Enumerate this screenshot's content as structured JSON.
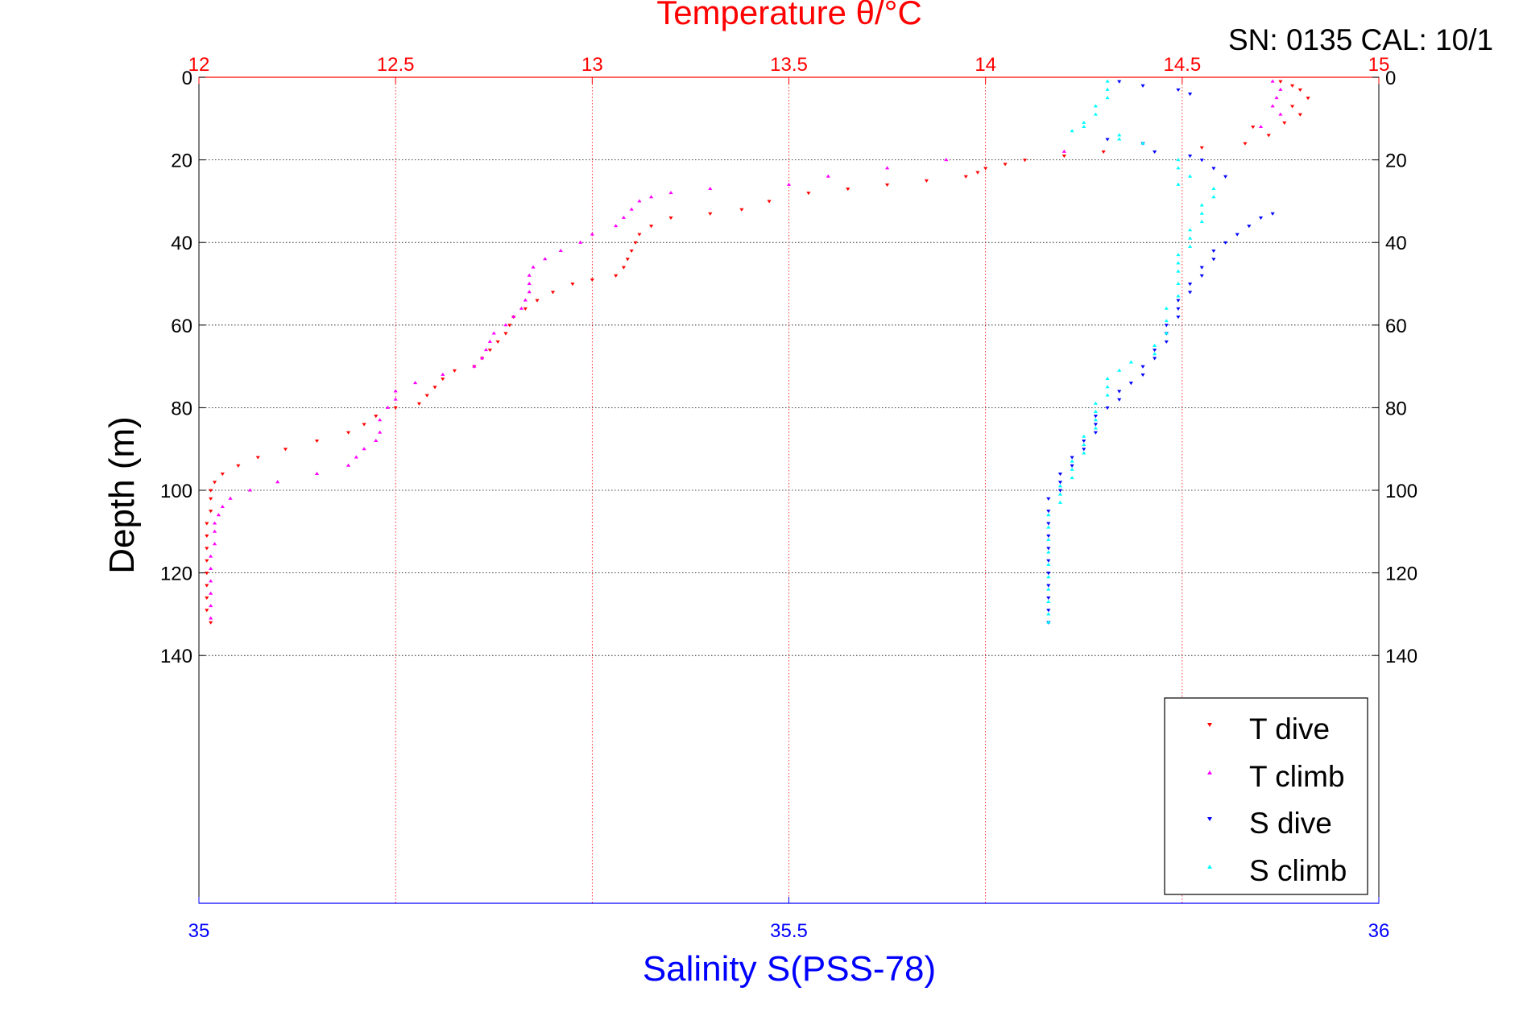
{
  "chart_data": {
    "type": "scatter",
    "title": "Temperature θ/°C",
    "subtitle": "SN: 0135  CAL: 10/1",
    "xlabel_top": "Temperature θ/°C",
    "xlabel_bottom": "Salinity S(PSS-78)",
    "ylabel": "Depth (m)",
    "temperature_axis": {
      "lim": [
        12,
        15
      ],
      "ticks": [
        "12",
        "12.5",
        "13",
        "13.5",
        "14",
        "14.5",
        "15"
      ],
      "color": "#ff0000"
    },
    "salinity_axis": {
      "lim": [
        35,
        36
      ],
      "ticks": [
        "35",
        "35.5",
        "36"
      ],
      "color": "#0000ff"
    },
    "depth_axis": {
      "lim": [
        0,
        200
      ],
      "reversed": true,
      "ticks": [
        "0",
        "20",
        "40",
        "60",
        "80",
        "100",
        "120",
        "140"
      ]
    },
    "grid": true,
    "legend_position": "bottom-right",
    "series": [
      {
        "name": "T dive",
        "axis": "temperature",
        "marker": "down-triangle",
        "color": "#ff0000",
        "points": [
          [
            14.75,
            1
          ],
          [
            14.78,
            2
          ],
          [
            14.8,
            3
          ],
          [
            14.82,
            5
          ],
          [
            14.78,
            7
          ],
          [
            14.8,
            9
          ],
          [
            14.76,
            11
          ],
          [
            14.68,
            12
          ],
          [
            14.72,
            14
          ],
          [
            14.66,
            16
          ],
          [
            14.55,
            17
          ],
          [
            14.3,
            18
          ],
          [
            14.2,
            19
          ],
          [
            14.1,
            20
          ],
          [
            14.05,
            21
          ],
          [
            14.0,
            22
          ],
          [
            13.98,
            23
          ],
          [
            13.95,
            24
          ],
          [
            13.85,
            25
          ],
          [
            13.75,
            26
          ],
          [
            13.65,
            27
          ],
          [
            13.55,
            28
          ],
          [
            13.45,
            30
          ],
          [
            13.38,
            32
          ],
          [
            13.3,
            33
          ],
          [
            13.2,
            34
          ],
          [
            13.15,
            36
          ],
          [
            13.12,
            38
          ],
          [
            13.11,
            40
          ],
          [
            13.1,
            42
          ],
          [
            13.09,
            44
          ],
          [
            13.08,
            46
          ],
          [
            13.06,
            48
          ],
          [
            13.0,
            49
          ],
          [
            12.95,
            50
          ],
          [
            12.9,
            52
          ],
          [
            12.86,
            54
          ],
          [
            12.83,
            56
          ],
          [
            12.8,
            58
          ],
          [
            12.79,
            60
          ],
          [
            12.78,
            62
          ],
          [
            12.76,
            64
          ],
          [
            12.74,
            66
          ],
          [
            12.72,
            68
          ],
          [
            12.7,
            70
          ],
          [
            12.65,
            71
          ],
          [
            12.62,
            73
          ],
          [
            12.6,
            75
          ],
          [
            12.58,
            77
          ],
          [
            12.56,
            79
          ],
          [
            12.5,
            80
          ],
          [
            12.45,
            82
          ],
          [
            12.42,
            84
          ],
          [
            12.38,
            86
          ],
          [
            12.3,
            88
          ],
          [
            12.22,
            90
          ],
          [
            12.15,
            92
          ],
          [
            12.1,
            94
          ],
          [
            12.06,
            96
          ],
          [
            12.04,
            98
          ],
          [
            12.03,
            100
          ],
          [
            12.03,
            102
          ],
          [
            12.03,
            105
          ],
          [
            12.02,
            108
          ],
          [
            12.02,
            111
          ],
          [
            12.02,
            114
          ],
          [
            12.02,
            117
          ],
          [
            12.02,
            120
          ],
          [
            12.02,
            123
          ],
          [
            12.02,
            126
          ],
          [
            12.02,
            129
          ],
          [
            12.03,
            132
          ]
        ]
      },
      {
        "name": "T climb",
        "axis": "temperature",
        "marker": "up-triangle",
        "color": "#ff00ff",
        "points": [
          [
            14.73,
            1
          ],
          [
            14.75,
            3
          ],
          [
            14.74,
            5
          ],
          [
            14.73,
            7
          ],
          [
            14.75,
            9
          ],
          [
            14.7,
            12
          ],
          [
            14.2,
            18
          ],
          [
            13.9,
            20
          ],
          [
            13.75,
            22
          ],
          [
            13.6,
            24
          ],
          [
            13.5,
            26
          ],
          [
            13.3,
            27
          ],
          [
            13.2,
            28
          ],
          [
            13.15,
            29
          ],
          [
            13.12,
            30
          ],
          [
            13.1,
            32
          ],
          [
            13.08,
            34
          ],
          [
            13.06,
            36
          ],
          [
            13.0,
            38
          ],
          [
            12.97,
            40
          ],
          [
            12.92,
            42
          ],
          [
            12.88,
            44
          ],
          [
            12.85,
            46
          ],
          [
            12.84,
            48
          ],
          [
            12.84,
            50
          ],
          [
            12.84,
            52
          ],
          [
            12.83,
            54
          ],
          [
            12.82,
            56
          ],
          [
            12.8,
            58
          ],
          [
            12.78,
            60
          ],
          [
            12.75,
            62
          ],
          [
            12.74,
            64
          ],
          [
            12.73,
            66
          ],
          [
            12.72,
            68
          ],
          [
            12.7,
            70
          ],
          [
            12.62,
            72
          ],
          [
            12.55,
            74
          ],
          [
            12.5,
            76
          ],
          [
            12.5,
            78
          ],
          [
            12.48,
            80
          ],
          [
            12.46,
            83
          ],
          [
            12.46,
            86
          ],
          [
            12.45,
            88
          ],
          [
            12.42,
            90
          ],
          [
            12.4,
            92
          ],
          [
            12.38,
            94
          ],
          [
            12.3,
            96
          ],
          [
            12.2,
            98
          ],
          [
            12.13,
            100
          ],
          [
            12.08,
            102
          ],
          [
            12.06,
            104
          ],
          [
            12.05,
            106
          ],
          [
            12.04,
            108
          ],
          [
            12.04,
            110
          ],
          [
            12.04,
            113
          ],
          [
            12.03,
            116
          ],
          [
            12.03,
            119
          ],
          [
            12.03,
            122
          ],
          [
            12.03,
            125
          ],
          [
            12.03,
            128
          ],
          [
            12.03,
            131
          ]
        ]
      },
      {
        "name": "S dive",
        "axis": "salinity",
        "marker": "down-triangle",
        "color": "#0000ff",
        "points": [
          [
            35.78,
            1
          ],
          [
            35.8,
            2
          ],
          [
            35.83,
            3
          ],
          [
            35.84,
            4
          ],
          [
            35.77,
            15
          ],
          [
            35.8,
            16
          ],
          [
            35.81,
            18
          ],
          [
            35.84,
            19
          ],
          [
            35.85,
            20
          ],
          [
            35.86,
            22
          ],
          [
            35.87,
            24
          ],
          [
            35.91,
            33
          ],
          [
            35.9,
            34
          ],
          [
            35.89,
            36
          ],
          [
            35.88,
            38
          ],
          [
            35.87,
            40
          ],
          [
            35.86,
            42
          ],
          [
            35.86,
            44
          ],
          [
            35.85,
            46
          ],
          [
            35.85,
            48
          ],
          [
            35.84,
            50
          ],
          [
            35.84,
            52
          ],
          [
            35.83,
            54
          ],
          [
            35.83,
            56
          ],
          [
            35.83,
            58
          ],
          [
            35.82,
            60
          ],
          [
            35.82,
            62
          ],
          [
            35.82,
            64
          ],
          [
            35.81,
            66
          ],
          [
            35.81,
            68
          ],
          [
            35.8,
            70
          ],
          [
            35.8,
            72
          ],
          [
            35.79,
            74
          ],
          [
            35.78,
            76
          ],
          [
            35.78,
            78
          ],
          [
            35.77,
            80
          ],
          [
            35.76,
            82
          ],
          [
            35.76,
            84
          ],
          [
            35.76,
            86
          ],
          [
            35.75,
            88
          ],
          [
            35.75,
            90
          ],
          [
            35.74,
            92
          ],
          [
            35.74,
            94
          ],
          [
            35.73,
            96
          ],
          [
            35.73,
            98
          ],
          [
            35.73,
            100
          ],
          [
            35.72,
            102
          ],
          [
            35.72,
            105
          ],
          [
            35.72,
            108
          ],
          [
            35.72,
            111
          ],
          [
            35.72,
            114
          ],
          [
            35.72,
            117
          ],
          [
            35.72,
            120
          ],
          [
            35.72,
            123
          ],
          [
            35.72,
            126
          ],
          [
            35.72,
            129
          ],
          [
            35.72,
            132
          ]
        ]
      },
      {
        "name": "S climb",
        "axis": "salinity",
        "marker": "up-triangle",
        "color": "#00ffff",
        "points": [
          [
            35.77,
            1
          ],
          [
            35.77,
            3
          ],
          [
            35.77,
            5
          ],
          [
            35.76,
            7
          ],
          [
            35.76,
            9
          ],
          [
            35.75,
            11
          ],
          [
            35.75,
            12
          ],
          [
            35.74,
            13
          ],
          [
            35.78,
            14
          ],
          [
            35.78,
            15
          ],
          [
            35.8,
            16
          ],
          [
            35.83,
            20
          ],
          [
            35.83,
            22
          ],
          [
            35.84,
            24
          ],
          [
            35.83,
            26
          ],
          [
            35.86,
            27
          ],
          [
            35.86,
            29
          ],
          [
            35.85,
            31
          ],
          [
            35.85,
            33
          ],
          [
            35.85,
            35
          ],
          [
            35.84,
            37
          ],
          [
            35.84,
            39
          ],
          [
            35.84,
            41
          ],
          [
            35.83,
            43
          ],
          [
            35.83,
            45
          ],
          [
            35.83,
            47
          ],
          [
            35.83,
            50
          ],
          [
            35.83,
            53
          ],
          [
            35.82,
            56
          ],
          [
            35.82,
            59
          ],
          [
            35.82,
            62
          ],
          [
            35.81,
            65
          ],
          [
            35.81,
            67
          ],
          [
            35.79,
            69
          ],
          [
            35.78,
            71
          ],
          [
            35.77,
            73
          ],
          [
            35.77,
            75
          ],
          [
            35.77,
            77
          ],
          [
            35.76,
            79
          ],
          [
            35.76,
            81
          ],
          [
            35.76,
            83
          ],
          [
            35.76,
            85
          ],
          [
            35.75,
            87
          ],
          [
            35.75,
            89
          ],
          [
            35.75,
            91
          ],
          [
            35.74,
            93
          ],
          [
            35.74,
            95
          ],
          [
            35.74,
            97
          ],
          [
            35.73,
            99
          ],
          [
            35.73,
            101
          ],
          [
            35.73,
            103
          ],
          [
            35.72,
            106
          ],
          [
            35.72,
            109
          ],
          [
            35.72,
            112
          ],
          [
            35.72,
            115
          ],
          [
            35.72,
            118
          ],
          [
            35.72,
            121
          ],
          [
            35.72,
            124
          ],
          [
            35.72,
            127
          ],
          [
            35.72,
            130
          ],
          [
            35.72,
            132
          ]
        ]
      }
    ]
  }
}
